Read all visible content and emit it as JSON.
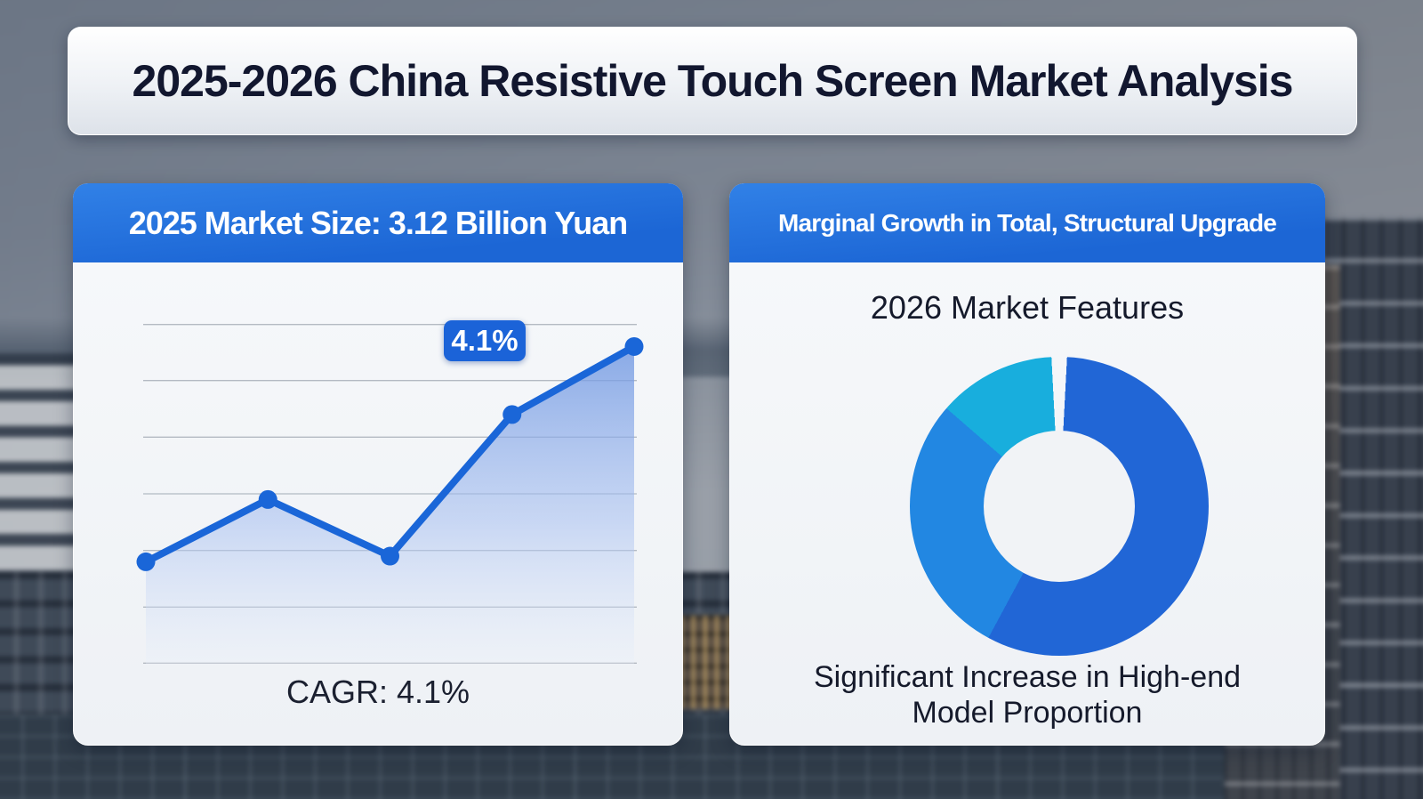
{
  "title": "2025-2026 China Resistive Touch Screen Market Analysis",
  "left_card": {
    "header": "2025 Market Size: 3.12 Billion Yuan",
    "growth_badge": "4.1%",
    "caption": "CAGR: 4.1%"
  },
  "right_card": {
    "header": "Marginal Growth in Total, Structural Upgrade",
    "subtitle": "2026 Market Features",
    "caption": "Significant Increase in High-end Model Proportion"
  },
  "colors": {
    "header_blue_top": "#3181e7",
    "header_blue_bottom": "#1c66d5",
    "badge_blue": "#1b63d8",
    "line_blue": "#1a66d8",
    "donut_primary": "#2166d6",
    "donut_secondary": "#2287e2",
    "donut_accent": "#18aedd",
    "card_background": "#f2f4f7",
    "title_text": "#12172f",
    "body_text": "#151a2b"
  },
  "chart_data": [
    {
      "type": "line",
      "title": "2025 Market Size: 3.12 Billion Yuan",
      "x": [
        1,
        2,
        3,
        4,
        5
      ],
      "values": [
        1.8,
        2.9,
        1.9,
        4.4,
        5.6
      ],
      "ylim": [
        0,
        6
      ],
      "gridlines": 7,
      "grid": true,
      "x_labels": [],
      "y_labels": [],
      "area_fill": true,
      "color": "#1a66d8",
      "annotation": "4.1%",
      "caption": "CAGR: 4.1%",
      "legend_position": "none"
    },
    {
      "type": "pie",
      "donut": true,
      "title": "2026 Market Features",
      "gap_deg": 6,
      "segments": [
        {
          "name": "segment-1",
          "value": 58,
          "color": "#2166d6"
        },
        {
          "name": "segment-2",
          "value": 29,
          "color": "#2287e2"
        },
        {
          "name": "segment-3",
          "value": 13,
          "color": "#18aedd"
        }
      ],
      "legend_position": "none",
      "caption": "Significant Increase in High-end Model Proportion"
    }
  ]
}
